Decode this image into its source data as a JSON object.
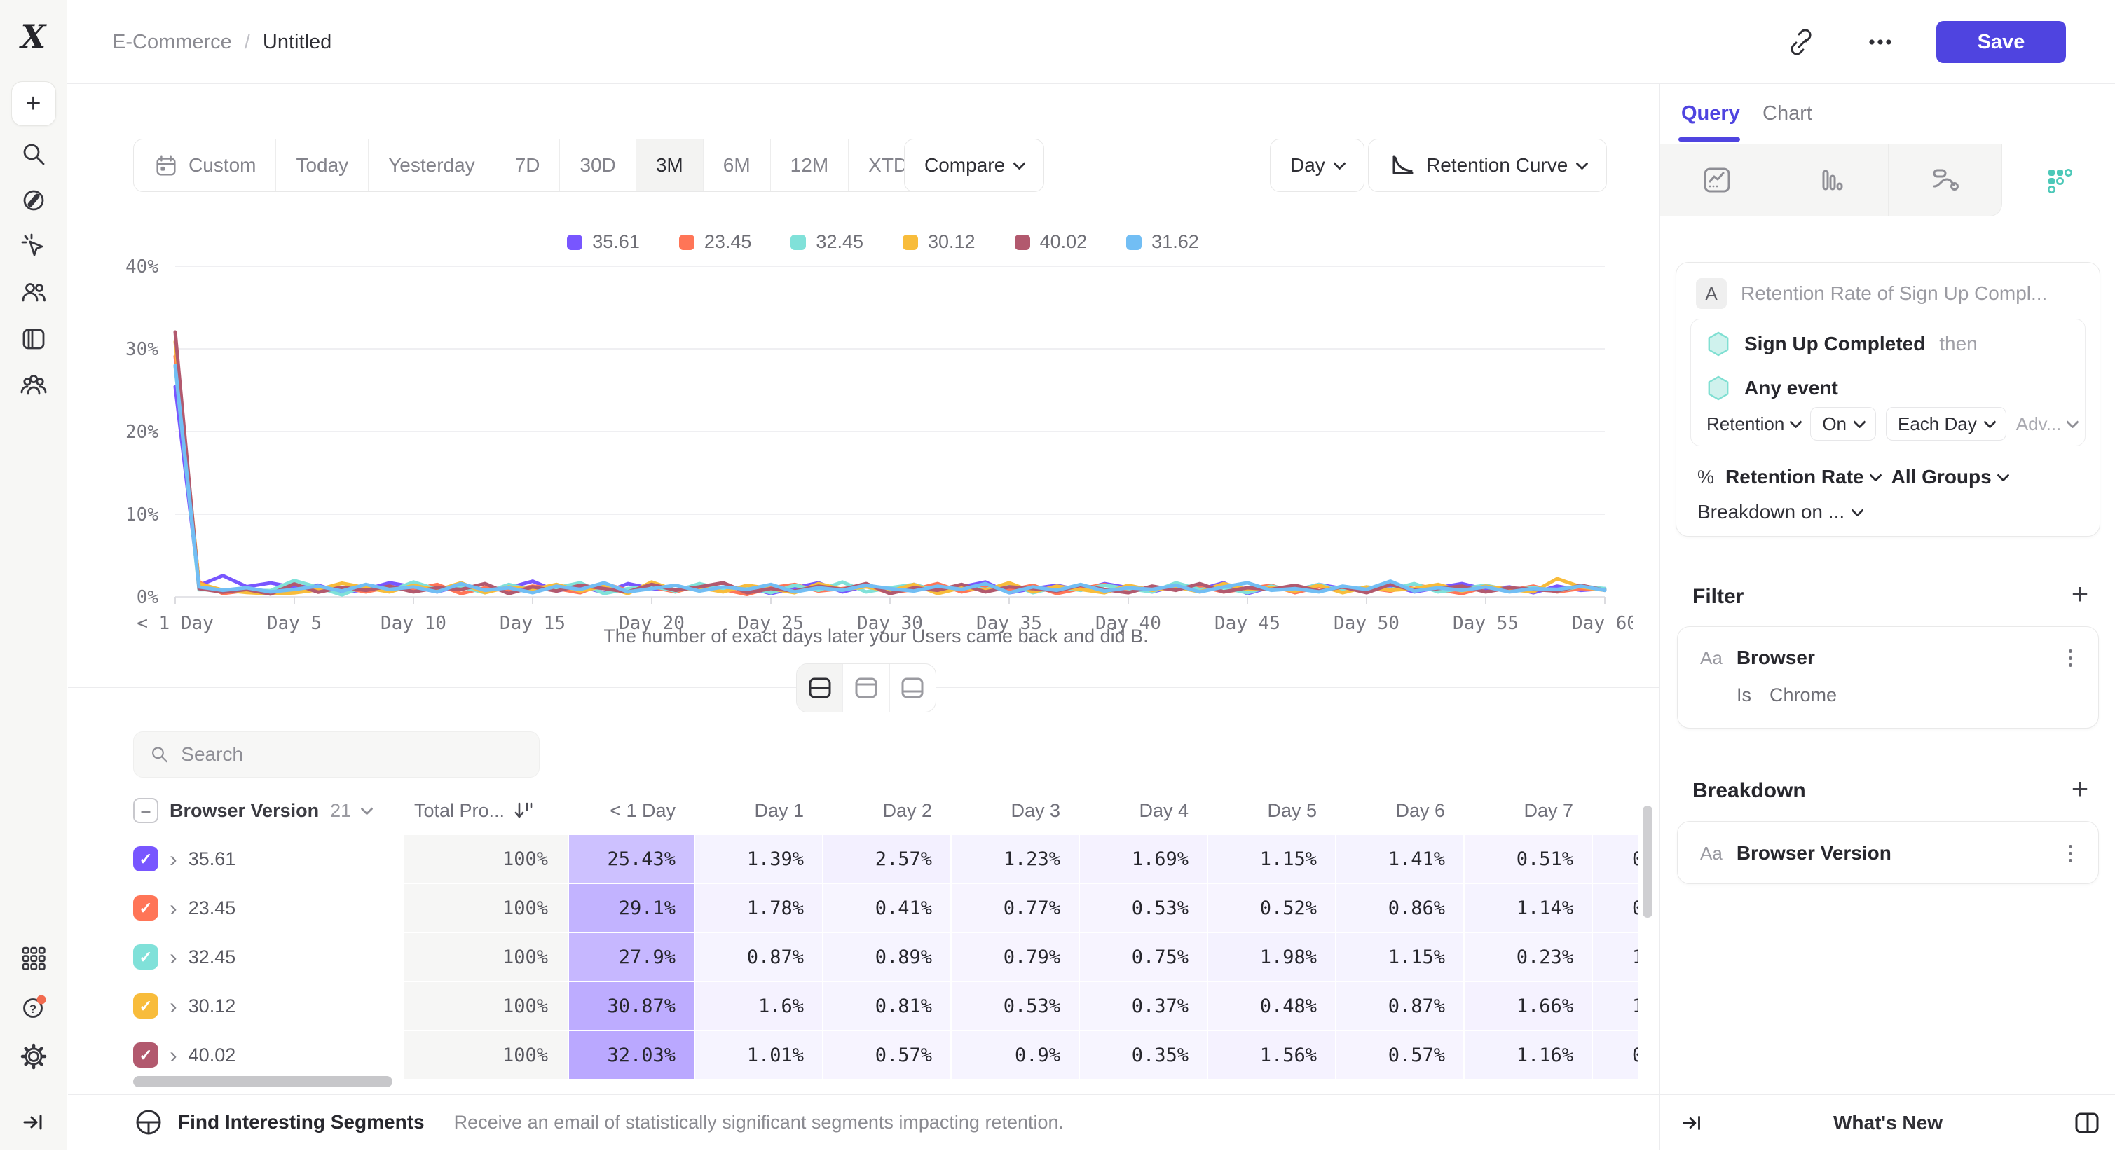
{
  "header": {
    "project": "E-Commerce",
    "sep": "/",
    "title": "Untitled",
    "save_label": "Save"
  },
  "sidebar": {
    "icons": [
      "mixpanel-logo",
      "create",
      "search",
      "discover",
      "events",
      "users",
      "boards",
      "cohorts",
      "apps",
      "help",
      "settings",
      "collapse"
    ]
  },
  "toolbar": {
    "ranges": [
      "Custom",
      "Today",
      "Yesterday",
      "7D",
      "30D",
      "3M",
      "6M",
      "12M",
      "XTD"
    ],
    "active_range": "3M",
    "compare_label": "Compare",
    "granularity_label": "Day",
    "chart_type_label": "Retention Curve",
    "view_toggles": {
      "options": [
        "split",
        "chart",
        "table"
      ],
      "active": "split"
    }
  },
  "search": {
    "placeholder": "Search"
  },
  "chart_data": {
    "type": "line",
    "title": "",
    "xlabel": "The number of exact days later your Users came back and did B.",
    "ylabel": "",
    "ylim": [
      0,
      40
    ],
    "y_ticks": [
      "0%",
      "10%",
      "20%",
      "30%",
      "40%"
    ],
    "x_range": [
      0,
      60
    ],
    "x_tick_positions": [
      0,
      5,
      10,
      15,
      20,
      25,
      30,
      35,
      40,
      45,
      50,
      55,
      60
    ],
    "x_tick_labels": [
      "< 1 Day",
      "Day 5",
      "Day 10",
      "Day 15",
      "Day 20",
      "Day 25",
      "Day 30",
      "Day 35",
      "Day 40",
      "Day 45",
      "Day 50",
      "Day 55",
      "Day 60"
    ],
    "grid": "horizontal",
    "legend_position": "top",
    "series": [
      {
        "name": "35.61",
        "color": "#7856FF",
        "values": [
          25.43,
          1.39,
          2.57,
          1.23,
          1.69,
          1.15,
          1.41,
          0.51,
          0.9,
          1.7,
          1.2,
          0.6,
          1.4,
          0.8,
          1.1,
          1.9,
          0.7,
          1.3,
          0.5,
          1.6,
          1.0,
          0.8,
          1.5,
          0.9,
          1.2,
          0.4,
          1.1,
          1.7,
          0.6,
          1.3,
          0.9,
          1.5,
          0.7,
          1.2,
          1.8,
          0.5,
          1.0,
          1.4,
          0.8,
          1.6,
          1.1,
          0.6,
          1.3,
          0.9,
          1.7,
          0.4,
          1.2,
          0.8,
          1.5,
          1.0,
          0.7,
          1.4,
          0.6,
          1.1,
          1.6,
          0.9,
          1.2,
          0.5,
          1.3,
          0.8,
          1.0
        ]
      },
      {
        "name": "23.45",
        "color": "#FF7557",
        "values": [
          29.1,
          1.78,
          0.41,
          0.77,
          0.53,
          0.52,
          0.86,
          1.14,
          0.6,
          1.2,
          0.9,
          1.5,
          0.4,
          1.1,
          0.7,
          1.3,
          1.0,
          0.5,
          1.6,
          0.8,
          1.2,
          0.6,
          1.4,
          0.9,
          0.3,
          1.1,
          1.5,
          0.7,
          1.0,
          1.3,
          0.5,
          0.9,
          1.6,
          0.6,
          1.2,
          0.8,
          1.4,
          0.4,
          1.0,
          1.5,
          0.7,
          1.1,
          0.9,
          1.3,
          0.6,
          1.0,
          1.4,
          0.5,
          1.2,
          0.8,
          1.1,
          0.7,
          1.5,
          0.9,
          0.4,
          1.2,
          0.8,
          1.3,
          0.6,
          1.0,
          0.9
        ]
      },
      {
        "name": "32.45",
        "color": "#80E1D9",
        "values": [
          27.9,
          0.87,
          0.89,
          0.79,
          0.75,
          1.98,
          1.15,
          0.23,
          1.4,
          0.7,
          1.8,
          0.9,
          1.2,
          0.5,
          1.5,
          0.8,
          1.1,
          1.7,
          0.4,
          1.0,
          1.3,
          0.7,
          1.6,
          0.9,
          1.2,
          0.5,
          1.4,
          0.8,
          1.8,
          0.6,
          1.1,
          1.5,
          0.7,
          1.3,
          0.9,
          1.6,
          0.5,
          1.2,
          0.8,
          1.4,
          1.0,
          0.6,
          1.7,
          0.9,
          1.1,
          0.5,
          1.3,
          0.8,
          1.5,
          0.7,
          1.2,
          0.9,
          1.6,
          0.6,
          1.0,
          1.4,
          0.8,
          1.1,
          0.7,
          1.3,
          1.0
        ]
      },
      {
        "name": "30.12",
        "color": "#F8BC3B",
        "values": [
          30.87,
          1.6,
          0.81,
          0.53,
          0.37,
          0.48,
          0.87,
          1.66,
          1.1,
          0.6,
          1.4,
          0.8,
          1.7,
          0.5,
          1.2,
          0.9,
          1.5,
          0.7,
          1.3,
          0.4,
          1.8,
          0.8,
          1.1,
          0.6,
          1.4,
          1.0,
          0.5,
          1.6,
          0.9,
          1.2,
          0.7,
          1.5,
          0.4,
          1.1,
          0.8,
          1.7,
          0.6,
          1.3,
          0.9,
          0.5,
          1.4,
          0.8,
          1.2,
          0.6,
          1.6,
          0.9,
          1.1,
          0.7,
          1.4,
          0.5,
          1.2,
          0.8,
          1.0,
          1.5,
          0.7,
          1.3,
          0.9,
          0.6,
          2.2,
          1.2,
          0.8
        ]
      },
      {
        "name": "40.02",
        "color": "#B2596E",
        "values": [
          32.03,
          1.01,
          0.57,
          0.9,
          0.35,
          1.56,
          0.57,
          1.16,
          0.8,
          1.3,
          0.6,
          1.1,
          0.9,
          1.6,
          0.4,
          1.2,
          0.7,
          1.4,
          1.0,
          0.6,
          1.5,
          0.8,
          1.2,
          1.7,
          0.5,
          1.0,
          0.7,
          1.3,
          0.9,
          1.6,
          0.4,
          1.1,
          0.8,
          1.5,
          0.6,
          1.2,
          1.0,
          0.7,
          1.4,
          0.9,
          0.5,
          1.3,
          0.8,
          1.6,
          0.6,
          1.1,
          0.9,
          1.4,
          0.7,
          1.2,
          0.5,
          1.5,
          0.8,
          1.0,
          1.3,
          0.6,
          1.1,
          0.9,
          0.7,
          1.4,
          0.8
        ]
      },
      {
        "name": "31.62",
        "color": "#72BEF4",
        "values": [
          28.0,
          1.2,
          0.8,
          1.1,
          0.6,
          0.9,
          1.3,
          0.7,
          1.5,
          0.9,
          1.2,
          0.6,
          1.6,
          0.8,
          1.1,
          0.5,
          1.3,
          0.9,
          1.7,
          0.6,
          1.0,
          1.4,
          0.7,
          1.2,
          0.9,
          1.5,
          0.6,
          1.1,
          0.8,
          1.4,
          1.0,
          0.7,
          1.3,
          0.9,
          1.6,
          0.5,
          1.2,
          0.8,
          1.5,
          0.7,
          1.1,
          0.9,
          1.4,
          0.6,
          1.2,
          1.7,
          0.8,
          1.0,
          0.6,
          1.3,
          0.9,
          1.9,
          0.7,
          1.1,
          0.8,
          1.2,
          0.6,
          1.0,
          0.9,
          1.3,
          0.8
        ]
      }
    ]
  },
  "table": {
    "group_label": "Browser Version",
    "group_count": "21",
    "total_label": "Total Pro...",
    "day_headers": [
      "< 1 Day",
      "Day 1",
      "Day 2",
      "Day 3",
      "Day 4",
      "Day 5",
      "Day 6",
      "Day 7"
    ],
    "rows": [
      {
        "name": "35.61",
        "color": "#7856FF",
        "total": "100%",
        "cells": [
          "25.43%",
          "1.39%",
          "2.57%",
          "1.23%",
          "1.69%",
          "1.15%",
          "1.41%",
          "0.51%"
        ],
        "partial": "0"
      },
      {
        "name": "23.45",
        "color": "#FF7557",
        "total": "100%",
        "cells": [
          "29.1%",
          "1.78%",
          "0.41%",
          "0.77%",
          "0.53%",
          "0.52%",
          "0.86%",
          "1.14%"
        ],
        "partial": "0"
      },
      {
        "name": "32.45",
        "color": "#80E1D9",
        "total": "100%",
        "cells": [
          "27.9%",
          "0.87%",
          "0.89%",
          "0.79%",
          "0.75%",
          "1.98%",
          "1.15%",
          "0.23%"
        ],
        "partial": "1"
      },
      {
        "name": "30.12",
        "color": "#F8BC3B",
        "total": "100%",
        "cells": [
          "30.87%",
          "1.6%",
          "0.81%",
          "0.53%",
          "0.37%",
          "0.48%",
          "0.87%",
          "1.66%"
        ],
        "partial": "1"
      },
      {
        "name": "40.02",
        "color": "#B2596E",
        "total": "100%",
        "cells": [
          "32.03%",
          "1.01%",
          "0.57%",
          "0.9%",
          "0.35%",
          "1.56%",
          "0.57%",
          "1.16%"
        ],
        "partial": "0"
      }
    ]
  },
  "panel": {
    "tabs": [
      "Query",
      "Chart"
    ],
    "active_tab": "Query",
    "report_icons": [
      "insights-icon",
      "funnels-icon",
      "flows-icon",
      "retention-icon"
    ],
    "step_letter": "A",
    "step_title": "Retention Rate of Sign Up Compl...",
    "event1": "Sign Up Completed",
    "then_label": "then",
    "event2": "Any event",
    "retention_label": "Retention",
    "on_label": "On",
    "each_day_label": "Each Day",
    "advanced_label": "Adv...",
    "percent_sign": "%",
    "metric_label": "Retention Rate",
    "groups_label": "All Groups",
    "breakdown_on_label": "Breakdown on ...",
    "filter_heading": "Filter",
    "aa_badge": "Aa",
    "filter_property": "Browser",
    "filter_operator": "Is",
    "filter_value": "Chrome",
    "breakdown_heading": "Breakdown",
    "breakdown_property": "Browser Version"
  },
  "footer": {
    "segments_title": "Find Interesting Segments",
    "segments_desc": "Receive an email of statistically significant segments impacting retention.",
    "whats_new": "What's New"
  },
  "colors": {
    "accent": "#4F44E0",
    "series": [
      "#7856FF",
      "#FF7557",
      "#80E1D9",
      "#F8BC3B",
      "#B2596E",
      "#72BEF4"
    ],
    "cell_highlight_base": "#7856FF",
    "help_badge": "#F26B4F",
    "retention_icon": "#4CC8B8"
  }
}
